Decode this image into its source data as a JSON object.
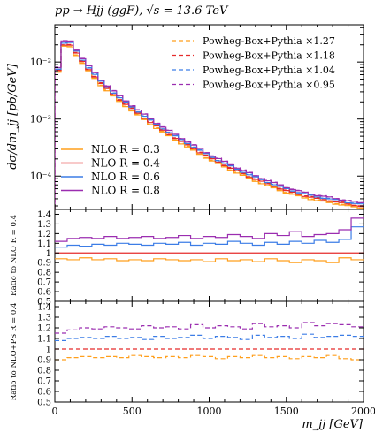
{
  "chart_data": {
    "type": "line",
    "title": "pp → Hjj (ggF), √s = 13.6 TeV",
    "xlabel": "m_jj [GeV]",
    "xlim": [
      0,
      2000
    ],
    "x_ticks": [
      "0",
      "500",
      "1000",
      "1500",
      "2000"
    ],
    "x_tick_values": [
      0,
      500,
      1000,
      1500,
      2000
    ],
    "panels": [
      {
        "id": "main",
        "ylabel": "dσ/dm_jj [pb/GeV]",
        "scale": "log",
        "ylim": [
          2.6e-05,
          0.045
        ],
        "y_ticks": [
          "10⁻²",
          "10⁻³",
          "10⁻⁴"
        ],
        "y_tick_values": [
          0.01,
          0.001,
          0.0001
        ],
        "base_shape": {
          "x": [
            0,
            40,
            60,
            80,
            100,
            150,
            200,
            300,
            400,
            500,
            600,
            700,
            800,
            900,
            1000,
            1100,
            1200,
            1300,
            1400,
            1500,
            1600,
            1700,
            1800,
            1900,
            2000
          ],
          "y": [
            0.0035,
            0.014,
            0.02,
            0.022,
            0.02,
            0.013,
            0.0085,
            0.0042,
            0.0024,
            0.0015,
            0.00095,
            0.00063,
            0.00043,
            0.0003,
            0.00021,
            0.000155,
            0.000115,
            8.8e-05,
            6.9e-05,
            5.5e-05,
            4.6e-05,
            4e-05,
            3.6e-05,
            3.2e-05,
            2.9e-05
          ]
        },
        "legend_top": {
          "placement": "top-right",
          "entries": [
            "Powheg-Box+Pythia ×1.27",
            "Powheg-Box+Pythia ×1.18",
            "Powheg-Box+Pythia ×1.04",
            "Powheg-Box+Pythia ×0.95"
          ]
        },
        "legend_bottom": {
          "placement": "lower-left",
          "entries": [
            "NLO R = 0.3",
            "NLO R = 0.4",
            "NLO R = 0.6",
            "NLO R = 0.8"
          ]
        }
      },
      {
        "id": "ratio-nlo",
        "ylabel": "Ratio to NLO R = 0.4",
        "ylim": [
          0.5,
          1.45
        ],
        "y_ticks": [
          "0.5",
          "0.6",
          "0.7",
          "0.8",
          "0.9",
          "1",
          "1.1",
          "1.2",
          "1.3",
          "1.4"
        ],
        "y_tick_values": [
          0.5,
          0.6,
          0.7,
          0.8,
          0.9,
          1.0,
          1.1,
          1.2,
          1.3,
          1.4
        ]
      },
      {
        "id": "ratio-nlops",
        "ylabel": "Ratio to NLO+PS R = 0.4",
        "ylim": [
          0.5,
          1.45
        ],
        "y_ticks": [
          "0.5",
          "0.6",
          "0.7",
          "0.8",
          "0.9",
          "1",
          "1.1",
          "1.2",
          "1.3",
          "1.4"
        ],
        "y_tick_values": [
          0.5,
          0.6,
          0.7,
          0.8,
          0.9,
          1.0,
          1.1,
          1.2,
          1.3,
          1.4
        ]
      }
    ],
    "series": [
      {
        "name": "NLO R = 0.3",
        "style": "solid",
        "color": "#ff9f1c",
        "ratio_main": 0.93,
        "ratio_nlo": [
          0.94,
          0.93,
          0.95,
          0.93,
          0.94,
          0.92,
          0.93,
          0.92,
          0.94,
          0.93,
          0.92,
          0.93,
          0.91,
          0.94,
          0.92,
          0.93,
          0.91,
          0.94,
          0.92,
          0.9,
          0.93,
          0.92,
          0.9,
          0.95,
          0.93
        ]
      },
      {
        "name": "NLO R = 0.4",
        "style": "solid",
        "color": "#e52b2b",
        "ratio_main": 1.0,
        "ratio_nlo": [
          1,
          1,
          1,
          1,
          1,
          1,
          1,
          1,
          1,
          1,
          1,
          1,
          1,
          1,
          1,
          1,
          1,
          1,
          1,
          1,
          1,
          1,
          1,
          1,
          1
        ]
      },
      {
        "name": "NLO R = 0.6",
        "style": "solid",
        "color": "#3c7de6",
        "ratio_main": 1.08,
        "ratio_nlo": [
          1.06,
          1.08,
          1.07,
          1.09,
          1.08,
          1.1,
          1.09,
          1.08,
          1.1,
          1.09,
          1.11,
          1.08,
          1.1,
          1.09,
          1.12,
          1.1,
          1.08,
          1.11,
          1.09,
          1.12,
          1.1,
          1.13,
          1.11,
          1.14,
          1.27
        ]
      },
      {
        "name": "NLO R = 0.8",
        "style": "solid",
        "color": "#9b2db0",
        "ratio_main": 1.15,
        "ratio_nlo": [
          1.12,
          1.15,
          1.16,
          1.15,
          1.17,
          1.15,
          1.16,
          1.17,
          1.15,
          1.16,
          1.18,
          1.15,
          1.17,
          1.16,
          1.19,
          1.17,
          1.15,
          1.2,
          1.18,
          1.22,
          1.17,
          1.19,
          1.2,
          1.24,
          1.36
        ]
      },
      {
        "name": "Powheg-Box+Pythia ×1.27",
        "style": "dashed",
        "color": "#ff9f1c",
        "ratio_main": 0.95,
        "ratio_nlops": [
          0.9,
          0.92,
          0.93,
          0.92,
          0.93,
          0.92,
          0.94,
          0.93,
          0.92,
          0.93,
          0.92,
          0.94,
          0.93,
          0.91,
          0.93,
          0.92,
          0.94,
          0.92,
          0.93,
          0.91,
          0.93,
          0.92,
          0.94,
          0.91,
          0.9
        ]
      },
      {
        "name": "Powheg-Box+Pythia ×1.18",
        "style": "dashed",
        "color": "#e52b2b",
        "ratio_main": 1.02,
        "ratio_nlops": [
          1,
          1,
          1,
          1,
          1,
          1,
          1,
          1,
          1,
          1,
          1,
          1,
          1,
          1,
          1,
          1,
          1,
          1,
          1,
          1,
          1,
          1,
          1,
          1,
          1
        ]
      },
      {
        "name": "Powheg-Box+Pythia ×1.04",
        "style": "dashed",
        "color": "#3c7de6",
        "ratio_main": 1.09,
        "ratio_nlops": [
          1.08,
          1.1,
          1.11,
          1.1,
          1.12,
          1.1,
          1.11,
          1.09,
          1.12,
          1.1,
          1.11,
          1.13,
          1.1,
          1.12,
          1.11,
          1.09,
          1.13,
          1.11,
          1.12,
          1.1,
          1.14,
          1.11,
          1.12,
          1.13,
          1.12
        ]
      },
      {
        "name": "Powheg-Box+Pythia ×0.95",
        "style": "dashed",
        "color": "#9b2db0",
        "ratio_main": 1.16,
        "ratio_nlops": [
          1.15,
          1.18,
          1.2,
          1.19,
          1.21,
          1.2,
          1.19,
          1.22,
          1.2,
          1.21,
          1.19,
          1.23,
          1.2,
          1.22,
          1.21,
          1.19,
          1.24,
          1.21,
          1.22,
          1.2,
          1.25,
          1.22,
          1.24,
          1.23,
          1.21
        ]
      }
    ]
  }
}
